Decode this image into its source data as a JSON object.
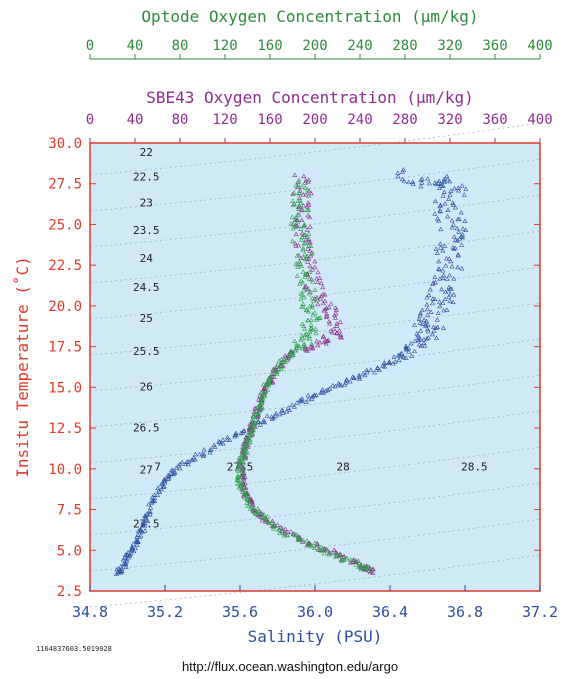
{
  "chart_data": {
    "type": "scatter",
    "top_axis_optode": {
      "title": "Optode Oxygen Concentration (µm/kg)",
      "range": [
        0,
        400
      ],
      "ticks": [
        "0",
        "40",
        "80",
        "120",
        "160",
        "200",
        "240",
        "280",
        "320",
        "360",
        "400"
      ],
      "color": "#2e8b3c"
    },
    "top_axis_sbe43": {
      "title": "SBE43 Oxygen Concentration (µm/kg)",
      "range": [
        0,
        400
      ],
      "ticks": [
        "0",
        "40",
        "80",
        "120",
        "160",
        "200",
        "240",
        "280",
        "320",
        "360",
        "400"
      ],
      "color": "#8e2d8e"
    },
    "x_axis": {
      "label": "Salinity (PSU)",
      "range": [
        34.8,
        37.2
      ],
      "ticks": [
        "34.8",
        "35.2",
        "35.6",
        "36.0",
        "36.4",
        "36.8",
        "37.2"
      ],
      "color": "#2d4e9e"
    },
    "y_axis": {
      "label": "Insitu Temperature (˚C)",
      "range": [
        2.5,
        30.0
      ],
      "ticks": [
        "2.5",
        "5.0",
        "7.5",
        "10.0",
        "12.5",
        "15.0",
        "17.5",
        "20.0",
        "22.5",
        "25.0",
        "27.5",
        "30.0"
      ],
      "color": "#e03a2a"
    },
    "density_labels": [
      {
        "text": "22",
        "s": 35.1,
        "t": 29.2
      },
      {
        "text": "22.5",
        "s": 35.1,
        "t": 27.7
      },
      {
        "text": "23",
        "s": 35.1,
        "t": 26.1
      },
      {
        "text": "23.5",
        "s": 35.1,
        "t": 24.4
      },
      {
        "text": "24",
        "s": 35.1,
        "t": 22.7
      },
      {
        "text": "24.5",
        "s": 35.1,
        "t": 20.9
      },
      {
        "text": "25",
        "s": 35.1,
        "t": 19.0
      },
      {
        "text": "25.5",
        "s": 35.1,
        "t": 17.0
      },
      {
        "text": "26",
        "s": 35.1,
        "t": 14.8
      },
      {
        "text": "26.5",
        "s": 35.1,
        "t": 12.3
      },
      {
        "text": "27",
        "s": 35.1,
        "t": 9.7
      },
      {
        "text": "27.5",
        "s": 35.1,
        "t": 6.4
      },
      {
        "text": "7",
        "s": 35.16,
        "t": 9.9
      },
      {
        "text": "27.5",
        "s": 35.6,
        "t": 9.9
      },
      {
        "text": "28",
        "s": 36.15,
        "t": 9.9
      },
      {
        "text": "28.5",
        "s": 36.85,
        "t": 9.9
      }
    ],
    "background_color": "#cfe9f7",
    "series": [
      {
        "color": "#2d4e9e",
        "points": [
          [
            34.95,
            3.6
          ],
          [
            34.97,
            3.9
          ],
          [
            35.0,
            4.5
          ],
          [
            35.02,
            5.0
          ],
          [
            35.05,
            5.5
          ],
          [
            35.08,
            6.2
          ],
          [
            35.1,
            7.0
          ],
          [
            35.13,
            7.8
          ],
          [
            35.17,
            8.6
          ],
          [
            35.2,
            9.3
          ],
          [
            35.25,
            9.9
          ],
          [
            35.33,
            10.5
          ],
          [
            35.42,
            11.1
          ],
          [
            35.52,
            11.7
          ],
          [
            35.62,
            12.3
          ],
          [
            35.72,
            12.9
          ],
          [
            35.82,
            13.5
          ],
          [
            35.92,
            14.1
          ],
          [
            36.02,
            14.6
          ],
          [
            36.12,
            15.1
          ],
          [
            36.22,
            15.6
          ],
          [
            36.32,
            16.1
          ],
          [
            36.42,
            16.6
          ],
          [
            36.5,
            17.1
          ],
          [
            36.54,
            17.6
          ],
          [
            36.57,
            18.1
          ],
          [
            36.6,
            18.6
          ],
          [
            36.62,
            19.2
          ],
          [
            36.64,
            19.8
          ],
          [
            36.66,
            20.4
          ],
          [
            36.68,
            21.0
          ],
          [
            36.7,
            21.8
          ],
          [
            36.71,
            22.6
          ],
          [
            36.72,
            23.4
          ],
          [
            36.73,
            24.2
          ],
          [
            36.74,
            25.0
          ],
          [
            36.7,
            25.8
          ],
          [
            36.72,
            26.6
          ],
          [
            36.74,
            27.3
          ],
          [
            36.68,
            27.8
          ],
          [
            36.55,
            27.4
          ],
          [
            36.45,
            28.3
          ]
        ]
      },
      {
        "color": "#8e2d8e",
        "points": [
          [
            36.3,
            3.7
          ],
          [
            36.28,
            3.9
          ],
          [
            36.2,
            4.3
          ],
          [
            36.1,
            4.8
          ],
          [
            36.0,
            5.3
          ],
          [
            35.9,
            5.8
          ],
          [
            35.8,
            6.4
          ],
          [
            35.72,
            7.0
          ],
          [
            35.68,
            7.6
          ],
          [
            35.64,
            8.2
          ],
          [
            35.62,
            8.9
          ],
          [
            35.61,
            9.6
          ],
          [
            35.61,
            10.3
          ],
          [
            35.62,
            11.0
          ],
          [
            35.64,
            11.7
          ],
          [
            35.66,
            12.4
          ],
          [
            35.68,
            13.1
          ],
          [
            35.7,
            13.8
          ],
          [
            35.72,
            14.5
          ],
          [
            35.75,
            15.2
          ],
          [
            35.78,
            15.9
          ],
          [
            35.83,
            16.6
          ],
          [
            35.9,
            17.2
          ],
          [
            36.0,
            17.6
          ],
          [
            36.08,
            18.0
          ],
          [
            36.12,
            18.6
          ],
          [
            36.1,
            19.4
          ],
          [
            36.05,
            20.2
          ],
          [
            36.0,
            21.0
          ],
          [
            35.97,
            22.0
          ],
          [
            35.95,
            23.0
          ],
          [
            35.94,
            24.0
          ],
          [
            35.93,
            25.0
          ],
          [
            35.93,
            26.0
          ],
          [
            35.93,
            27.0
          ],
          [
            35.93,
            28.0
          ]
        ]
      },
      {
        "color": "#2e9e48",
        "points": [
          [
            36.29,
            3.8
          ],
          [
            36.25,
            4.0
          ],
          [
            36.15,
            4.5
          ],
          [
            36.05,
            5.0
          ],
          [
            35.95,
            5.5
          ],
          [
            35.85,
            6.0
          ],
          [
            35.76,
            6.7
          ],
          [
            35.7,
            7.3
          ],
          [
            35.65,
            7.9
          ],
          [
            35.62,
            8.5
          ],
          [
            35.6,
            9.2
          ],
          [
            35.6,
            9.9
          ],
          [
            35.61,
            10.6
          ],
          [
            35.63,
            11.3
          ],
          [
            35.65,
            12.0
          ],
          [
            35.67,
            12.7
          ],
          [
            35.69,
            13.4
          ],
          [
            35.71,
            14.1
          ],
          [
            35.73,
            14.8
          ],
          [
            35.76,
            15.5
          ],
          [
            35.8,
            16.2
          ],
          [
            35.86,
            16.9
          ],
          [
            35.92,
            17.5
          ],
          [
            35.96,
            18.0
          ],
          [
            35.98,
            18.6
          ],
          [
            35.98,
            19.3
          ],
          [
            35.97,
            20.0
          ],
          [
            35.96,
            20.8
          ],
          [
            35.95,
            21.8
          ],
          [
            35.94,
            22.8
          ],
          [
            35.93,
            23.8
          ],
          [
            35.92,
            24.8
          ],
          [
            35.92,
            25.8
          ],
          [
            35.92,
            26.8
          ],
          [
            35.92,
            27.8
          ]
        ]
      }
    ]
  },
  "footer": {
    "id_text": "1164837603.5019028",
    "url": "http://flux.ocean.washington.edu/argo"
  }
}
